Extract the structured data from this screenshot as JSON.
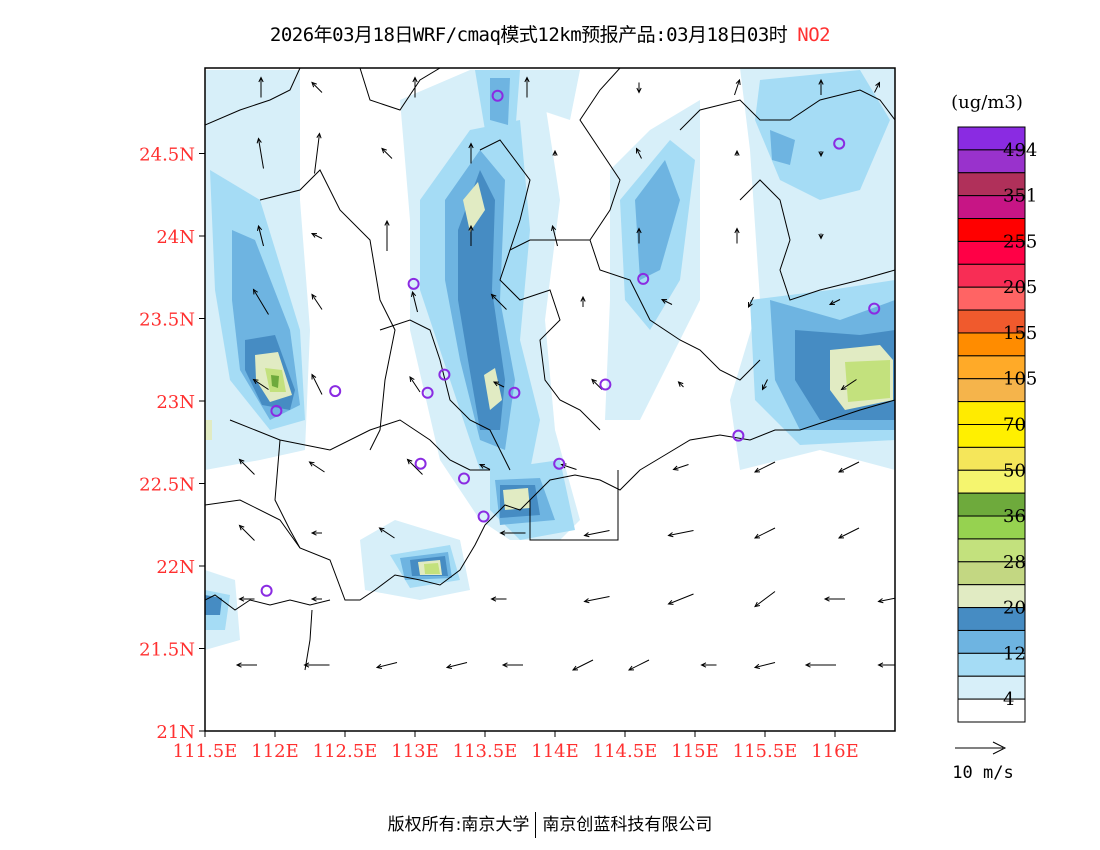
{
  "title": {
    "text": "2026年03月18日WRF/cmaq模式12km预报产品:03月18日03时",
    "species": "NO2"
  },
  "footer": {
    "left": "版权所有:南京大学",
    "right": "南京创蓝科技有限公司"
  },
  "chart_data": {
    "type": "heatmap",
    "title": "2026年03月18日WRF/cmaq模式12km预报产品:03月18日03时 NO2",
    "xlim": [
      111.5,
      116.5
    ],
    "ylim": [
      21,
      25
    ],
    "xticks": [
      {
        "v": 111.5,
        "label": "111.5E"
      },
      {
        "v": 112,
        "label": "112E"
      },
      {
        "v": 112.5,
        "label": "112.5E"
      },
      {
        "v": 113,
        "label": "113E"
      },
      {
        "v": 113.5,
        "label": "113.5E"
      },
      {
        "v": 114,
        "label": "114E"
      },
      {
        "v": 114.5,
        "label": "114.5E"
      },
      {
        "v": 115,
        "label": "115E"
      },
      {
        "v": 115.5,
        "label": "115.5E"
      },
      {
        "v": 116,
        "label": "116E"
      }
    ],
    "yticks": [
      {
        "v": 21,
        "label": "21N"
      },
      {
        "v": 21.5,
        "label": "21.5N"
      },
      {
        "v": 22,
        "label": "22N"
      },
      {
        "v": 22.5,
        "label": "22.5N"
      },
      {
        "v": 23,
        "label": "23N"
      },
      {
        "v": 23.5,
        "label": "23.5N"
      },
      {
        "v": 24,
        "label": "24N"
      },
      {
        "v": 24.5,
        "label": "24.5N"
      }
    ],
    "colorbar": {
      "unit": "(ug/m3)",
      "colors": [
        "#8a2be2",
        "#9932cc",
        "#b0305a",
        "#c71585",
        "#ff0000",
        "#ff0046",
        "#f82d55",
        "#ff6464",
        "#f05a2d",
        "#ff8c00",
        "#ffaa28",
        "#f5b44b",
        "#ffeb00",
        "#fff000",
        "#f5e65a",
        "#f5f56e",
        "#6eaa3c",
        "#96d250",
        "#c3e17d",
        "#c3d782",
        "#e1ebc3",
        "#468cc3",
        "#6eb4e1",
        "#a5dcf5",
        "#d7eff9",
        "#ffffff"
      ],
      "labels": [
        "494",
        "351",
        "255",
        "205",
        "155",
        "105",
        "70",
        "50",
        "36",
        "28",
        "20",
        "12",
        "4"
      ]
    },
    "wind_legend": "10 m/s",
    "stations": [
      [
        113.59,
        24.85
      ],
      [
        116.03,
        24.56
      ],
      [
        112.99,
        23.71
      ],
      [
        114.63,
        23.74
      ],
      [
        116.28,
        23.56
      ],
      [
        112.43,
        23.06
      ],
      [
        112.01,
        22.94
      ],
      [
        113.09,
        23.05
      ],
      [
        113.21,
        23.16
      ],
      [
        113.71,
        23.05
      ],
      [
        114.36,
        23.1
      ],
      [
        115.31,
        22.79
      ],
      [
        113.04,
        22.62
      ],
      [
        113.35,
        22.53
      ],
      [
        114.03,
        22.62
      ],
      [
        113.49,
        22.3
      ],
      [
        111.94,
        21.85
      ]
    ],
    "wind": [
      [
        111.9,
        24.9,
        0,
        4
      ],
      [
        112.3,
        24.9,
        -2,
        2
      ],
      [
        113.0,
        24.9,
        0,
        4
      ],
      [
        113.8,
        24.9,
        0,
        4
      ],
      [
        114.6,
        24.9,
        0,
        -2
      ],
      [
        115.3,
        24.9,
        1,
        3
      ],
      [
        115.9,
        24.9,
        0,
        3
      ],
      [
        116.3,
        24.9,
        1,
        2
      ],
      [
        111.9,
        24.5,
        -1,
        6
      ],
      [
        112.3,
        24.5,
        1,
        8
      ],
      [
        112.8,
        24.5,
        -2,
        2
      ],
      [
        113.4,
        24.5,
        0,
        4
      ],
      [
        114.0,
        24.5,
        0,
        1
      ],
      [
        114.6,
        24.5,
        -1,
        2
      ],
      [
        115.3,
        24.5,
        0,
        1
      ],
      [
        115.9,
        24.5,
        0,
        -1
      ],
      [
        111.9,
        24.0,
        -1,
        4
      ],
      [
        112.3,
        24.0,
        -2,
        1
      ],
      [
        112.8,
        24.0,
        0,
        6
      ],
      [
        113.4,
        24.0,
        0,
        4
      ],
      [
        114.0,
        24.0,
        -1,
        4
      ],
      [
        114.6,
        24.0,
        0,
        3
      ],
      [
        115.3,
        24.0,
        0,
        3
      ],
      [
        115.9,
        24.0,
        0,
        -1
      ],
      [
        111.9,
        23.6,
        -3,
        5
      ],
      [
        112.3,
        23.6,
        -2,
        3
      ],
      [
        113.0,
        23.6,
        -1,
        4
      ],
      [
        113.6,
        23.6,
        -3,
        3
      ],
      [
        114.2,
        23.6,
        0,
        2
      ],
      [
        114.8,
        23.6,
        -2,
        1
      ],
      [
        115.4,
        23.6,
        -1,
        -2
      ],
      [
        116.0,
        23.6,
        -2,
        -1
      ],
      [
        111.9,
        23.1,
        -3,
        2
      ],
      [
        112.3,
        23.1,
        -2,
        4
      ],
      [
        113.0,
        23.1,
        -2,
        3
      ],
      [
        113.6,
        23.1,
        -2,
        1
      ],
      [
        114.3,
        23.1,
        -2,
        2
      ],
      [
        114.9,
        23.1,
        -1,
        1
      ],
      [
        115.5,
        23.1,
        -1,
        -2
      ],
      [
        116.1,
        23.1,
        -3,
        -2
      ],
      [
        111.8,
        22.6,
        -3,
        3
      ],
      [
        112.3,
        22.6,
        -3,
        2
      ],
      [
        113.0,
        22.6,
        -3,
        3
      ],
      [
        113.5,
        22.6,
        -2,
        1
      ],
      [
        114.1,
        22.6,
        -3,
        1
      ],
      [
        114.9,
        22.6,
        -3,
        -1
      ],
      [
        115.5,
        22.6,
        -4,
        -2
      ],
      [
        116.1,
        22.6,
        -4,
        -2
      ],
      [
        111.8,
        22.2,
        -3,
        3
      ],
      [
        112.3,
        22.2,
        -2,
        0
      ],
      [
        112.8,
        22.2,
        -3,
        2
      ],
      [
        113.7,
        22.2,
        -5,
        0
      ],
      [
        114.3,
        22.2,
        -5,
        -1
      ],
      [
        114.9,
        22.2,
        -5,
        -1
      ],
      [
        115.5,
        22.2,
        -4,
        -2
      ],
      [
        116.1,
        22.2,
        -4,
        -2
      ],
      [
        111.8,
        21.8,
        -3,
        0
      ],
      [
        112.3,
        21.8,
        -2,
        0
      ],
      [
        113.6,
        21.8,
        -3,
        0
      ],
      [
        114.3,
        21.8,
        -5,
        -1
      ],
      [
        114.9,
        21.8,
        -5,
        -2
      ],
      [
        115.5,
        21.8,
        -4,
        -3
      ],
      [
        116.0,
        21.8,
        -4,
        0
      ],
      [
        116.4,
        21.8,
        -5,
        -1
      ],
      [
        111.8,
        21.4,
        -4,
        0
      ],
      [
        112.3,
        21.4,
        -5,
        0
      ],
      [
        112.8,
        21.4,
        -4,
        -1
      ],
      [
        113.3,
        21.4,
        -4,
        -1
      ],
      [
        113.7,
        21.4,
        -4,
        0
      ],
      [
        114.2,
        21.4,
        -4,
        -2
      ],
      [
        114.6,
        21.4,
        -4,
        -2
      ],
      [
        115.1,
        21.4,
        -3,
        0
      ],
      [
        115.5,
        21.4,
        -4,
        -1
      ],
      [
        115.9,
        21.4,
        -6,
        0
      ],
      [
        116.4,
        21.4,
        -5,
        0
      ]
    ]
  }
}
